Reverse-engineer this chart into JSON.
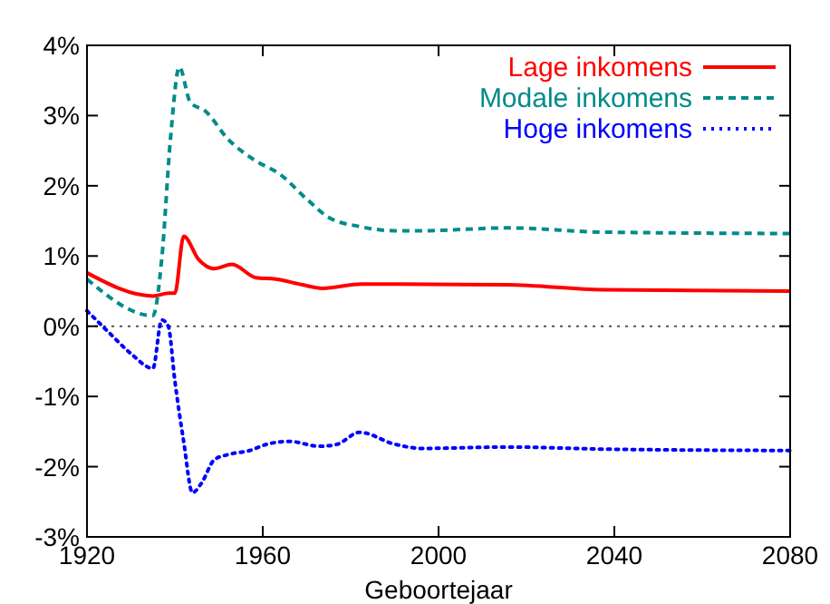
{
  "chart_data": {
    "type": "line",
    "xlabel": "Geboortejaar",
    "xlim": [
      1920,
      2080
    ],
    "xticks": [
      1920,
      1960,
      2000,
      2040,
      2080
    ],
    "ylim": [
      -3,
      4
    ],
    "yticks": [
      {
        "value": -3,
        "label": "-3%"
      },
      {
        "value": -2,
        "label": "-2%"
      },
      {
        "value": -1,
        "label": "-1%"
      },
      {
        "value": 0,
        "label": "0%"
      },
      {
        "value": 1,
        "label": "1%"
      },
      {
        "value": 2,
        "label": "2%"
      },
      {
        "value": 3,
        "label": "3%"
      },
      {
        "value": 4,
        "label": "4%"
      }
    ],
    "grid": false,
    "legend": "top right",
    "ref_lines": [
      {
        "axis": "y",
        "value": 0,
        "color": "#555555",
        "line_style": "dotted"
      }
    ],
    "series": [
      {
        "name": "Lage inkomens",
        "color": "#ff0000",
        "line_style": "solid",
        "x": [
          1920,
          1935,
          1938.6,
          1940,
          1942,
          1945.4,
          1948.9,
          1953,
          1958.5,
          1963,
          1969,
          1973.6,
          1982.5,
          1990.8,
          2015.7,
          2037.5,
          2080
        ],
        "values": [
          0.76,
          0.43,
          0.47,
          0.47,
          1.28,
          0.95,
          0.82,
          0.88,
          0.69,
          0.67,
          0.59,
          0.54,
          0.6,
          0.6,
          0.59,
          0.52,
          0.5
        ]
      },
      {
        "name": "Modale inkomens",
        "color": "#008b8b",
        "line_style": "dashed",
        "x": [
          1920,
          1935,
          1937,
          1939,
          1941,
          1943.5,
          1947,
          1952,
          1958,
          1964,
          1970,
          1975,
          1982,
          1990,
          1996.3,
          2015.7,
          2037.5,
          2080
        ],
        "values": [
          0.67,
          0.15,
          0.95,
          2.67,
          3.69,
          3.19,
          3.06,
          2.67,
          2.37,
          2.16,
          1.81,
          1.55,
          1.42,
          1.36,
          1.36,
          1.4,
          1.34,
          1.32
        ]
      },
      {
        "name": "Hoge inkomens",
        "color": "#0000ff",
        "line_style": "dotted",
        "x": [
          1920,
          1925,
          1930,
          1935,
          1937,
          1938.5,
          1940,
          1942,
          1944,
          1946,
          1949,
          1952,
          1957,
          1961,
          1966,
          1973,
          1977,
          1982,
          1990,
          1996.3,
          2015.7,
          2037.5,
          2080
        ],
        "values": [
          0.22,
          -0.09,
          -0.39,
          -0.6,
          0.09,
          0,
          -0.78,
          -1.64,
          -2.37,
          -2.24,
          -1.9,
          -1.83,
          -1.77,
          -1.68,
          -1.64,
          -1.71,
          -1.68,
          -1.51,
          -1.68,
          -1.74,
          -1.72,
          -1.75,
          -1.77
        ]
      }
    ]
  }
}
